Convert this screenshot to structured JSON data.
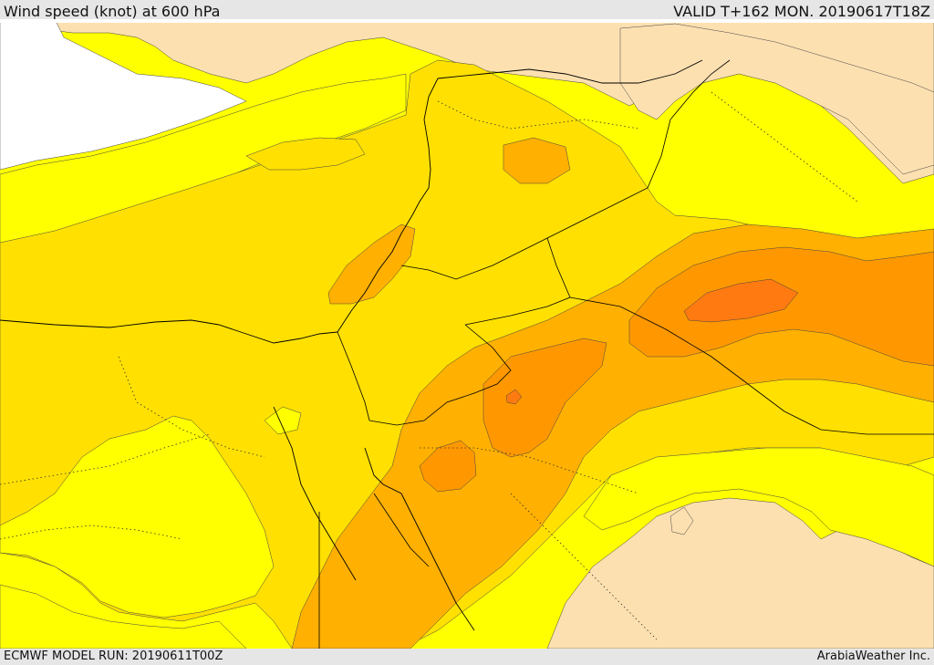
{
  "header": {
    "title": "Wind speed (knot) at 600 hPa",
    "valid": "VALID T+162 MON. 20190617T18Z"
  },
  "footer": {
    "model_run": "ECMWF MODEL RUN: 20190611T00Z",
    "credit": "ArabiaWeather Inc."
  },
  "colors": {
    "sea_white": "#ffffff",
    "tan": "#fde0b0",
    "yellow": "#ffff00",
    "gold": "#ffe000",
    "amber": "#ffb000",
    "orange": "#ff9800",
    "dark_orange": "#ff7a10",
    "borders": "#000000"
  }
}
